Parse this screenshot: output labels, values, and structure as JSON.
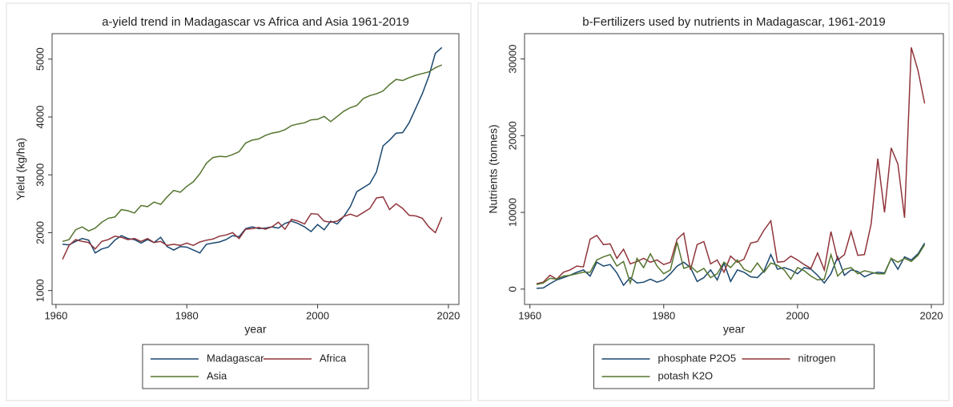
{
  "chart_data": [
    {
      "type": "line",
      "title": "a-yield trend in Madagascar vs Africa and Asia 1961-2019",
      "xlabel": "year",
      "ylabel": "Yield (kg/ha)",
      "x": [
        1961,
        1962,
        1963,
        1964,
        1965,
        1966,
        1967,
        1968,
        1969,
        1970,
        1971,
        1972,
        1973,
        1974,
        1975,
        1976,
        1977,
        1978,
        1979,
        1980,
        1981,
        1982,
        1983,
        1984,
        1985,
        1986,
        1987,
        1988,
        1989,
        1990,
        1991,
        1992,
        1993,
        1994,
        1995,
        1996,
        1997,
        1998,
        1999,
        2000,
        2001,
        2002,
        2003,
        2004,
        2005,
        2006,
        2007,
        2008,
        2009,
        2010,
        2011,
        2012,
        2013,
        2014,
        2015,
        2016,
        2017,
        2018,
        2019
      ],
      "series": [
        {
          "name": "Madagascar",
          "color": "#1a476f",
          "values": [
            1800,
            1790,
            1850,
            1900,
            1870,
            1650,
            1720,
            1750,
            1870,
            1950,
            1900,
            1880,
            1820,
            1880,
            1830,
            1920,
            1760,
            1700,
            1760,
            1750,
            1700,
            1650,
            1800,
            1820,
            1840,
            1880,
            1950,
            1930,
            2070,
            2100,
            2070,
            2080,
            2100,
            2080,
            2160,
            2200,
            2160,
            2100,
            2020,
            2140,
            2050,
            2200,
            2150,
            2280,
            2450,
            2710,
            2780,
            2850,
            3050,
            3500,
            3600,
            3720,
            3730,
            3900,
            4150,
            4400,
            4700,
            5100,
            5200
          ]
        },
        {
          "name": "Africa",
          "color": "#90353b",
          "values": [
            1540,
            1780,
            1880,
            1850,
            1830,
            1720,
            1850,
            1880,
            1940,
            1920,
            1880,
            1900,
            1850,
            1900,
            1830,
            1850,
            1780,
            1800,
            1780,
            1820,
            1780,
            1840,
            1870,
            1890,
            1940,
            1960,
            2000,
            1900,
            2060,
            2070,
            2090,
            2060,
            2100,
            2180,
            2060,
            2230,
            2200,
            2150,
            2330,
            2320,
            2200,
            2180,
            2200,
            2280,
            2320,
            2280,
            2350,
            2420,
            2600,
            2620,
            2400,
            2500,
            2420,
            2300,
            2290,
            2250,
            2100,
            2000,
            2270
          ]
        },
        {
          "name": "Asia",
          "color": "#55752f",
          "values": [
            1850,
            1880,
            2050,
            2100,
            2030,
            2080,
            2180,
            2250,
            2270,
            2400,
            2380,
            2340,
            2470,
            2450,
            2530,
            2490,
            2620,
            2730,
            2700,
            2800,
            2880,
            3020,
            3200,
            3300,
            3320,
            3310,
            3350,
            3400,
            3550,
            3600,
            3620,
            3680,
            3720,
            3740,
            3780,
            3850,
            3880,
            3900,
            3950,
            3960,
            4010,
            3920,
            4010,
            4100,
            4160,
            4200,
            4320,
            4370,
            4400,
            4450,
            4560,
            4650,
            4630,
            4680,
            4720,
            4750,
            4780,
            4850,
            4900
          ]
        }
      ],
      "xlim": [
        1959.4,
        2021.6
      ],
      "ylim": [
        760,
        5440
      ],
      "xticks": [
        1960,
        1980,
        2000,
        2020
      ],
      "yticks": [
        1000,
        2000,
        3000,
        4000,
        5000
      ],
      "legend": "bottom"
    },
    {
      "type": "line",
      "title": "b-Fertilizers used by nutrients in Madagascar, 1961-2019",
      "xlabel": "year",
      "ylabel": "Nutrients (tonnes)",
      "x": [
        1961,
        1962,
        1963,
        1964,
        1965,
        1966,
        1967,
        1968,
        1969,
        1970,
        1971,
        1972,
        1973,
        1974,
        1975,
        1976,
        1977,
        1978,
        1979,
        1980,
        1981,
        1982,
        1983,
        1984,
        1985,
        1986,
        1987,
        1988,
        1989,
        1990,
        1991,
        1992,
        1993,
        1994,
        1995,
        1996,
        1997,
        1998,
        1999,
        2000,
        2001,
        2002,
        2003,
        2004,
        2005,
        2006,
        2007,
        2008,
        2009,
        2010,
        2011,
        2012,
        2013,
        2014,
        2015,
        2016,
        2017,
        2018,
        2019
      ],
      "series": [
        {
          "name": "phosphate P2O5",
          "color": "#1a476f",
          "values": [
            100,
            150,
            700,
            1200,
            1500,
            1800,
            2200,
            2500,
            1700,
            3500,
            3000,
            3200,
            2100,
            500,
            1500,
            800,
            900,
            1300,
            900,
            1200,
            2000,
            3000,
            3500,
            2800,
            1000,
            1500,
            2500,
            1200,
            3400,
            1000,
            2500,
            2200,
            1600,
            1500,
            2400,
            4500,
            2600,
            2800,
            2500,
            2000,
            2800,
            2600,
            1800,
            800,
            2000,
            4200,
            1800,
            2500,
            2300,
            1600,
            2000,
            2200,
            2100,
            4000,
            2600,
            4200,
            3800,
            4600,
            6000
          ]
        },
        {
          "name": "nitrogen",
          "color": "#90353b",
          "values": [
            700,
            900,
            1800,
            1300,
            2200,
            2500,
            3000,
            2900,
            6500,
            7000,
            5800,
            5900,
            4000,
            5200,
            3300,
            3600,
            4000,
            3500,
            3800,
            3200,
            3500,
            6500,
            7300,
            2500,
            5800,
            6200,
            3300,
            3800,
            2200,
            4300,
            3500,
            3900,
            6000,
            6200,
            7700,
            8900,
            3500,
            3600,
            4300,
            3800,
            3200,
            2700,
            4700,
            2500,
            7500,
            3800,
            4500,
            7500,
            4400,
            4500,
            8500,
            17000,
            10000,
            18400,
            16300,
            9300,
            31500,
            28500,
            24200
          ]
        },
        {
          "name": "potash K2O",
          "color": "#55752f",
          "values": [
            600,
            800,
            1400,
            1300,
            1700,
            1800,
            2000,
            2200,
            2200,
            3800,
            4200,
            4500,
            3000,
            3600,
            800,
            4000,
            2800,
            4600,
            3000,
            2000,
            2500,
            6100,
            2700,
            3000,
            2200,
            2700,
            1500,
            2000,
            3500,
            2800,
            3800,
            2600,
            2200,
            3400,
            2200,
            3400,
            3100,
            2500,
            1300,
            2800,
            2400,
            1700,
            1200,
            1300,
            4500,
            1700,
            2600,
            2800,
            2000,
            2400,
            2200,
            2000,
            2000,
            4000,
            3500,
            4000,
            3600,
            4400,
            5800
          ]
        }
      ],
      "xlim": [
        1959.2,
        2021.8
      ],
      "ylim": [
        -2000,
        33300
      ],
      "xticks": [
        1960,
        1980,
        2000,
        2020
      ],
      "yticks": [
        0,
        10000,
        20000,
        30000
      ],
      "legend": "bottom"
    }
  ]
}
